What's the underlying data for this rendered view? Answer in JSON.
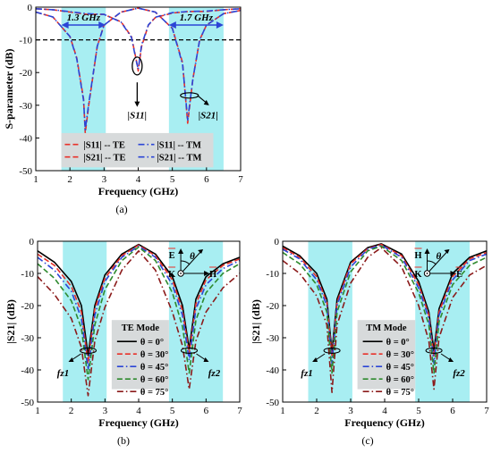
{
  "chart_data": [
    {
      "type": "line",
      "caption": "(a)",
      "xlabel": "Frequency (GHz)",
      "ylabel": "S-parameter (dB)",
      "xlim": [
        1,
        7
      ],
      "ylim": [
        -50,
        0
      ],
      "xticks": [
        1,
        2,
        3,
        4,
        5,
        6,
        7
      ],
      "yticks": [
        0,
        -10,
        -20,
        -30,
        -40,
        -50
      ],
      "bands": [
        [
          1.75,
          3.05
        ],
        [
          4.9,
          6.5
        ]
      ],
      "reference_line": -10,
      "annotations": {
        "band1": "1.3 GHz",
        "band2": "1.7 GHz",
        "s11": "|S11|",
        "s21": "|S21|"
      },
      "legend": [
        "|S11| -- TE",
        "|S11| -- TM",
        "|S21| -- TE",
        "|S21| -- TM"
      ],
      "series": [
        {
          "name": "|S11| -- TE",
          "color": "#e8312a",
          "dash": "dash",
          "x": [
            1.0,
            1.5,
            2.0,
            2.5,
            3.0,
            3.5,
            3.8,
            3.95,
            4.0,
            4.1,
            4.3,
            4.5,
            5.0,
            5.5,
            6.0,
            6.5,
            7.0
          ],
          "y": [
            -0.5,
            -0.8,
            -1.5,
            -2.2,
            -2.2,
            -4.5,
            -9.0,
            -16.5,
            -19.5,
            -12.0,
            -5.5,
            -3.2,
            -1.8,
            -1.3,
            -1.3,
            -0.8,
            -0.5
          ]
        },
        {
          "name": "|S11| -- TM",
          "color": "#2b45d6",
          "dash": "dashdot",
          "x": [
            1.0,
            1.5,
            2.0,
            2.5,
            3.0,
            3.5,
            3.8,
            3.95,
            4.0,
            4.1,
            4.3,
            4.5,
            5.0,
            5.5,
            6.0,
            6.5,
            7.0
          ],
          "y": [
            -0.5,
            -0.8,
            -1.4,
            -2.0,
            -2.2,
            -4.6,
            -9.2,
            -16.8,
            -19.0,
            -11.5,
            -5.4,
            -3.1,
            -1.7,
            -1.3,
            -1.2,
            -0.8,
            -0.5
          ]
        },
        {
          "name": "|S21| -- TE",
          "color": "#e8312a",
          "dash": "dash",
          "x": [
            1.0,
            1.5,
            2.0,
            2.2,
            2.4,
            2.45,
            2.55,
            2.8,
            3.0,
            3.5,
            4.0,
            4.5,
            5.0,
            5.3,
            5.45,
            5.6,
            5.8,
            6.0,
            6.5,
            7.0
          ],
          "y": [
            -1.5,
            -3.0,
            -9.0,
            -15.5,
            -28.0,
            -38.5,
            -30.0,
            -12.0,
            -5.5,
            -1.5,
            -0.3,
            -1.5,
            -6.5,
            -17.0,
            -35.5,
            -22.0,
            -10.0,
            -5.5,
            -2.0,
            -1.0
          ]
        },
        {
          "name": "|S21| -- TM",
          "color": "#2b45d6",
          "dash": "dashdot",
          "x": [
            1.0,
            1.5,
            2.0,
            2.2,
            2.4,
            2.45,
            2.55,
            2.8,
            3.0,
            3.5,
            4.0,
            4.5,
            5.0,
            5.3,
            5.45,
            5.6,
            5.8,
            6.0,
            6.5,
            7.0
          ],
          "y": [
            -1.5,
            -3.0,
            -9.0,
            -15.8,
            -28.5,
            -37.5,
            -29.5,
            -12.0,
            -5.5,
            -1.5,
            -0.3,
            -1.5,
            -6.5,
            -17.5,
            -34.5,
            -22.0,
            -10.0,
            -5.5,
            -2.0,
            -1.0
          ]
        }
      ]
    },
    {
      "type": "line",
      "caption": "(b)",
      "xlabel": "Frequency (GHz)",
      "ylabel": "|S21| (dB)",
      "xlim": [
        1,
        7
      ],
      "ylim": [
        -50,
        0
      ],
      "xticks": [
        1,
        2,
        3,
        4,
        5,
        6,
        7
      ],
      "yticks": [
        0,
        -10,
        -20,
        -30,
        -40,
        -50
      ],
      "bands": [
        [
          1.75,
          3.05
        ],
        [
          4.9,
          6.5
        ]
      ],
      "legend_title": "TE Mode",
      "annotations": {
        "fz1": "fz1",
        "fz2": "fz2",
        "field_e": "E",
        "field_k": "K",
        "field_h": "H",
        "angle": "θ"
      },
      "series": [
        {
          "name": "θ = 0°",
          "color": "#000000",
          "dash": "solid",
          "x": [
            1.0,
            1.5,
            2.0,
            2.3,
            2.5,
            2.7,
            3.0,
            3.5,
            4.0,
            4.5,
            5.0,
            5.3,
            5.5,
            5.7,
            6.0,
            6.5,
            7.0
          ],
          "y": [
            -3.0,
            -6.5,
            -12.5,
            -20.0,
            -35.5,
            -20.0,
            -10.5,
            -4.0,
            -1.0,
            -4.0,
            -11.0,
            -20.0,
            -33.5,
            -18.0,
            -11.0,
            -7.0,
            -5.0
          ]
        },
        {
          "name": "θ = 30°",
          "color": "#e8312a",
          "dash": "dash",
          "x": [
            1.0,
            1.5,
            2.0,
            2.3,
            2.5,
            2.7,
            3.0,
            3.5,
            4.0,
            4.5,
            5.0,
            5.3,
            5.5,
            5.7,
            6.0,
            6.5,
            7.0
          ],
          "y": [
            -4.0,
            -7.5,
            -14.0,
            -22.0,
            -38.0,
            -21.0,
            -11.5,
            -4.5,
            -1.2,
            -4.5,
            -12.0,
            -21.5,
            -35.0,
            -19.5,
            -12.0,
            -7.5,
            -5.5
          ]
        },
        {
          "name": "θ = 45°",
          "color": "#2b45d6",
          "dash": "dashdot",
          "x": [
            1.0,
            1.5,
            2.0,
            2.3,
            2.5,
            2.7,
            3.0,
            3.5,
            4.0,
            4.5,
            5.0,
            5.3,
            5.5,
            5.7,
            6.0,
            6.5,
            7.0
          ],
          "y": [
            -5.0,
            -9.0,
            -15.5,
            -24.0,
            -40.0,
            -23.0,
            -12.5,
            -5.0,
            -1.5,
            -5.0,
            -13.5,
            -23.0,
            -37.0,
            -21.0,
            -13.5,
            -8.5,
            -6.0
          ]
        },
        {
          "name": "θ = 60°",
          "color": "#2e8a2e",
          "dash": "dash",
          "x": [
            1.0,
            1.5,
            2.0,
            2.3,
            2.5,
            2.7,
            3.0,
            3.5,
            4.0,
            4.5,
            5.0,
            5.3,
            5.5,
            5.7,
            6.0,
            6.5,
            7.0
          ],
          "y": [
            -7.0,
            -11.5,
            -18.5,
            -27.0,
            -43.0,
            -26.0,
            -15.0,
            -6.0,
            -1.8,
            -6.0,
            -16.0,
            -26.5,
            -41.0,
            -24.5,
            -16.0,
            -10.0,
            -7.0
          ]
        },
        {
          "name": "θ = 75°",
          "color": "#8b1a1a",
          "dash": "dashdot",
          "x": [
            1.0,
            1.5,
            2.0,
            2.3,
            2.5,
            2.7,
            3.0,
            3.5,
            4.0,
            4.5,
            5.0,
            5.3,
            5.5,
            5.7,
            6.0,
            6.5,
            7.0
          ],
          "y": [
            -11.0,
            -16.5,
            -24.0,
            -33.0,
            -48.0,
            -31.0,
            -20.5,
            -9.0,
            -3.0,
            -9.0,
            -22.0,
            -32.5,
            -46.0,
            -31.0,
            -22.0,
            -14.5,
            -10.0
          ]
        }
      ]
    },
    {
      "type": "line",
      "caption": "(c)",
      "xlabel": "Frequency (GHz)",
      "ylabel": "|S21| (dB)",
      "xlim": [
        1,
        7
      ],
      "ylim": [
        -50,
        0
      ],
      "xticks": [
        1,
        2,
        3,
        4,
        5,
        6,
        7
      ],
      "yticks": [
        0,
        -10,
        -20,
        -30,
        -40,
        -50
      ],
      "bands": [
        [
          1.75,
          3.05
        ],
        [
          4.9,
          6.5
        ]
      ],
      "legend_title": "TM Mode",
      "annotations": {
        "fz1": "fz1",
        "fz2": "fz2",
        "field_e": "E",
        "field_k": "K",
        "field_h": "H",
        "angle": "θ"
      },
      "series": [
        {
          "name": "θ = 0°",
          "color": "#000000",
          "dash": "solid",
          "x": [
            1.0,
            1.5,
            2.0,
            2.3,
            2.45,
            2.6,
            3.0,
            3.5,
            3.9,
            4.5,
            5.0,
            5.3,
            5.45,
            5.6,
            6.0,
            6.5,
            7.0
          ],
          "y": [
            -1.5,
            -4.5,
            -10.0,
            -18.0,
            -34.5,
            -18.0,
            -6.5,
            -2.0,
            -0.8,
            -4.0,
            -12.5,
            -22.0,
            -34.0,
            -21.0,
            -10.0,
            -5.0,
            -3.0
          ]
        },
        {
          "name": "θ = 30°",
          "color": "#e8312a",
          "dash": "dash",
          "x": [
            1.0,
            1.5,
            2.0,
            2.3,
            2.45,
            2.6,
            3.0,
            3.5,
            3.9,
            4.5,
            5.0,
            5.3,
            5.45,
            5.6,
            6.0,
            6.5,
            7.0
          ],
          "y": [
            -2.0,
            -5.0,
            -11.0,
            -19.0,
            -36.0,
            -19.0,
            -7.0,
            -2.3,
            -1.0,
            -4.5,
            -13.5,
            -23.0,
            -36.0,
            -22.0,
            -11.0,
            -5.5,
            -3.5
          ]
        },
        {
          "name": "θ = 45°",
          "color": "#2b45d6",
          "dash": "dashdot",
          "x": [
            1.0,
            1.5,
            2.0,
            2.3,
            2.45,
            2.6,
            3.0,
            3.5,
            3.9,
            4.5,
            5.0,
            5.3,
            5.45,
            5.6,
            6.0,
            6.5,
            7.0
          ],
          "y": [
            -2.5,
            -5.5,
            -12.0,
            -20.0,
            -38.0,
            -20.0,
            -8.0,
            -2.5,
            -1.2,
            -5.0,
            -14.5,
            -24.0,
            -38.0,
            -23.0,
            -12.0,
            -6.0,
            -4.0
          ]
        },
        {
          "name": "θ = 60°",
          "color": "#2e8a2e",
          "dash": "dash",
          "x": [
            1.0,
            1.5,
            2.0,
            2.3,
            2.45,
            2.6,
            3.0,
            3.5,
            3.9,
            4.5,
            5.0,
            5.3,
            5.45,
            5.6,
            6.0,
            6.5,
            7.0
          ],
          "y": [
            -3.5,
            -7.0,
            -13.5,
            -22.0,
            -41.0,
            -22.0,
            -9.5,
            -3.0,
            -1.5,
            -6.0,
            -16.0,
            -26.0,
            -41.0,
            -25.0,
            -13.5,
            -7.5,
            -5.0
          ]
        },
        {
          "name": "θ = 75°",
          "color": "#8b1a1a",
          "dash": "dashdot",
          "x": [
            1.0,
            1.5,
            2.0,
            2.3,
            2.45,
            2.6,
            3.0,
            3.5,
            3.9,
            4.5,
            5.0,
            5.3,
            5.45,
            5.6,
            6.0,
            6.5,
            7.0
          ],
          "y": [
            -6.0,
            -10.0,
            -17.0,
            -26.0,
            -47.0,
            -26.0,
            -13.0,
            -5.0,
            -2.0,
            -8.0,
            -20.0,
            -31.0,
            -46.0,
            -30.0,
            -17.5,
            -10.5,
            -7.5
          ]
        }
      ]
    }
  ]
}
